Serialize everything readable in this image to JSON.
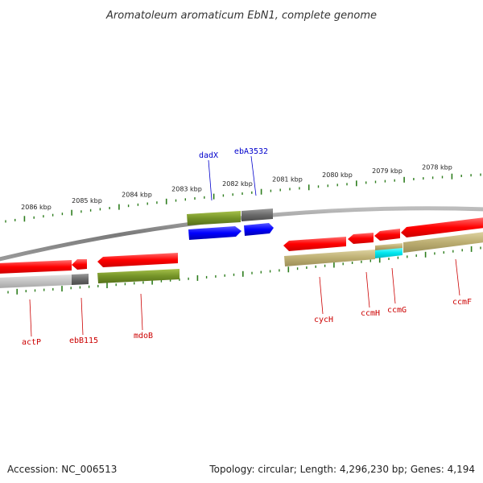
{
  "title": "Aromatoleum aromaticum EbN1, complete genome",
  "footer": {
    "accession": "Accession: NC_006513",
    "summary": "Topology: circular; Length: 4,296,230 bp; Genes: 4,194"
  },
  "colors": {
    "forward_gene": "#ff0000",
    "forward_label": "#0000cc",
    "reverse_label": "#cc0000",
    "cds_olive": "#7a9a2a",
    "cds_khaki": "#bfb27a",
    "cds_gray": "#6e6e6e",
    "cds_lightgray": "#c8c8c8",
    "cds_cyan": "#00e5ee",
    "cds_blue": "#0000ff",
    "ticks": "#2d7d1d",
    "backbone": "#8a8a8a"
  },
  "tick_labels": [
    "2086 kbp",
    "2085 kbp",
    "2084 kbp",
    "2083 kbp",
    "2082 kbp",
    "2081 kbp",
    "2080 kbp",
    "2079 kbp",
    "2078 kbp"
  ],
  "genes_top": [
    {
      "label": "dadX",
      "strand": "forward"
    },
    {
      "label": "ebA3532",
      "strand": "forward"
    }
  ],
  "genes_bottom": [
    {
      "label": "actP",
      "strand": "reverse"
    },
    {
      "label": "ebB115",
      "strand": "reverse"
    },
    {
      "label": "mdoB",
      "strand": "reverse"
    },
    {
      "label": "cycH",
      "strand": "reverse"
    },
    {
      "label": "ccmH",
      "strand": "reverse"
    },
    {
      "label": "ccmG",
      "strand": "reverse"
    },
    {
      "label": "ccmF",
      "strand": "reverse"
    }
  ]
}
